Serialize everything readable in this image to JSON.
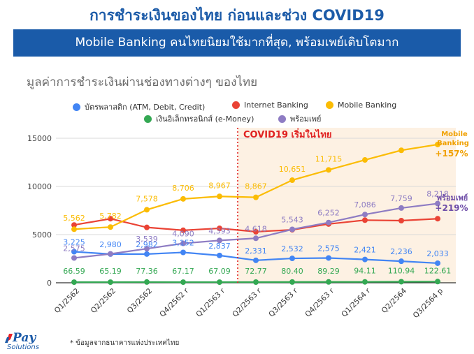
{
  "header": {
    "title": "การชำระเงินของไทย ก่อนและช่วง COVID19",
    "banner": "Mobile Banking คนไทยนิยมใช้มากที่สุด, พร้อมเพย์เติบโตมาก"
  },
  "footnote": "* ข้อมูลจากธนาคารแห่งประเทศไทย",
  "logo": {
    "pay": "Pay",
    "solutions": "Solutions"
  },
  "chart_data": {
    "type": "line",
    "title": "มูลค่าการชำระเงินผ่านช่องทางต่างๆ ของไทย",
    "xlabel": "",
    "ylabel": "",
    "ylim": [
      0,
      15000
    ],
    "yticks": [
      "0",
      "5000",
      "10000",
      "15000"
    ],
    "grid": true,
    "legend_position": "top",
    "categories": [
      "Q1/2562",
      "Q2/2562",
      "Q3/2562",
      "Q4/2562 r",
      "Q1/2563 r",
      "Q2/2563 r",
      "Q3/2563 r",
      "Q4/2563 r",
      "Q1/2564 r",
      "Q2/2564",
      "Q3/2564 p"
    ],
    "series": [
      {
        "name": "บัตรพลาสติก (ATM, Debit, Credit)",
        "color": "#4285f4",
        "values": [
          3225,
          2980,
          2982,
          3152,
          2837,
          2331,
          2532,
          2575,
          2421,
          2236,
          2033
        ],
        "labels": [
          "3,225",
          "2,980",
          "2,982",
          "3,152",
          "2,837",
          "2,331",
          "2,532",
          "2,575",
          "2,421",
          "2,236",
          "2,033"
        ]
      },
      {
        "name": "Internet Banking",
        "color": "#ea4335",
        "values": [
          6000,
          6650,
          5750,
          5450,
          5650,
          5300,
          5500,
          6100,
          6500,
          6450,
          6650
        ],
        "labels": []
      },
      {
        "name": "Mobile Banking",
        "color": "#fbbc04",
        "values": [
          5562,
          5782,
          7578,
          8706,
          8967,
          8867,
          10651,
          11715,
          12750,
          13750,
          14350
        ],
        "labels": [
          "5,562",
          "5,782",
          "7,578",
          "8,706",
          "8,967",
          "8,867",
          "10,651",
          "11,715",
          "",
          "",
          ""
        ]
      },
      {
        "name": "เงินอิเล็กทรอนิกส์ (e-Money)",
        "color": "#34a853",
        "values": [
          66.59,
          65.19,
          77.36,
          67.17,
          67.09,
          72.77,
          80.4,
          89.29,
          94.11,
          110.94,
          122.61
        ],
        "labels": [
          "66.59",
          "65.19",
          "77.36",
          "67.17",
          "67.09",
          "72.77",
          "80.40",
          "89.29",
          "94.11",
          "110.94",
          "122.61"
        ]
      },
      {
        "name": "พร้อมเพย์",
        "color": "#8e7cc3",
        "values": [
          2575,
          3000,
          3539,
          4090,
          4393,
          4618,
          5543,
          6252,
          7086,
          7759,
          8218
        ],
        "labels": [
          "2,575",
          "",
          "3,539",
          "4,090",
          "4,393",
          "4,618",
          "5,543",
          "6,252",
          "7,086",
          "7,759",
          "8,218"
        ]
      }
    ],
    "annotations": {
      "covid": "COVID19 เริ่มในไทย",
      "mobile_line1": "Mobile",
      "mobile_line2": "Banking",
      "mobile_growth": "+157%",
      "promptpay_name": "พร้อมเพย์",
      "promptpay_growth": "+219%"
    }
  }
}
